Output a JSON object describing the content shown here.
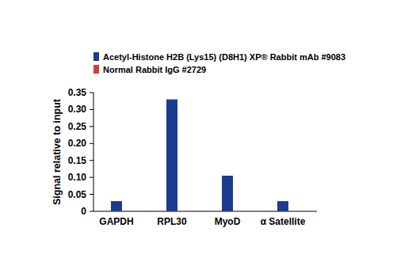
{
  "chart_data": {
    "type": "bar",
    "y_label": "Signal relative to input",
    "categories": [
      "GAPDH",
      "RPL30",
      "MyoD",
      "α Satellite"
    ],
    "series": [
      {
        "name": "Acetyl-Histone H2B (Lys15) (D8H1) XP® Rabbit mAb #9083",
        "color": "#1b3b8f",
        "values": [
          0.03,
          0.33,
          0.105,
          0.03
        ]
      },
      {
        "name": "Normal Rabbit IgG #2729",
        "color": "#d93a3a",
        "values": [
          0,
          0,
          0,
          0
        ]
      }
    ],
    "ylim": [
      0,
      0.35
    ],
    "yticks": [
      0,
      0.05,
      {
        "value": 0.1,
        "label": "0.10"
      },
      0.15,
      {
        "value": 0.2,
        "label": "0.20"
      },
      0.25,
      {
        "value": 0.3,
        "label": "0.30"
      },
      0.35
    ],
    "grid": false,
    "legend": "top"
  }
}
